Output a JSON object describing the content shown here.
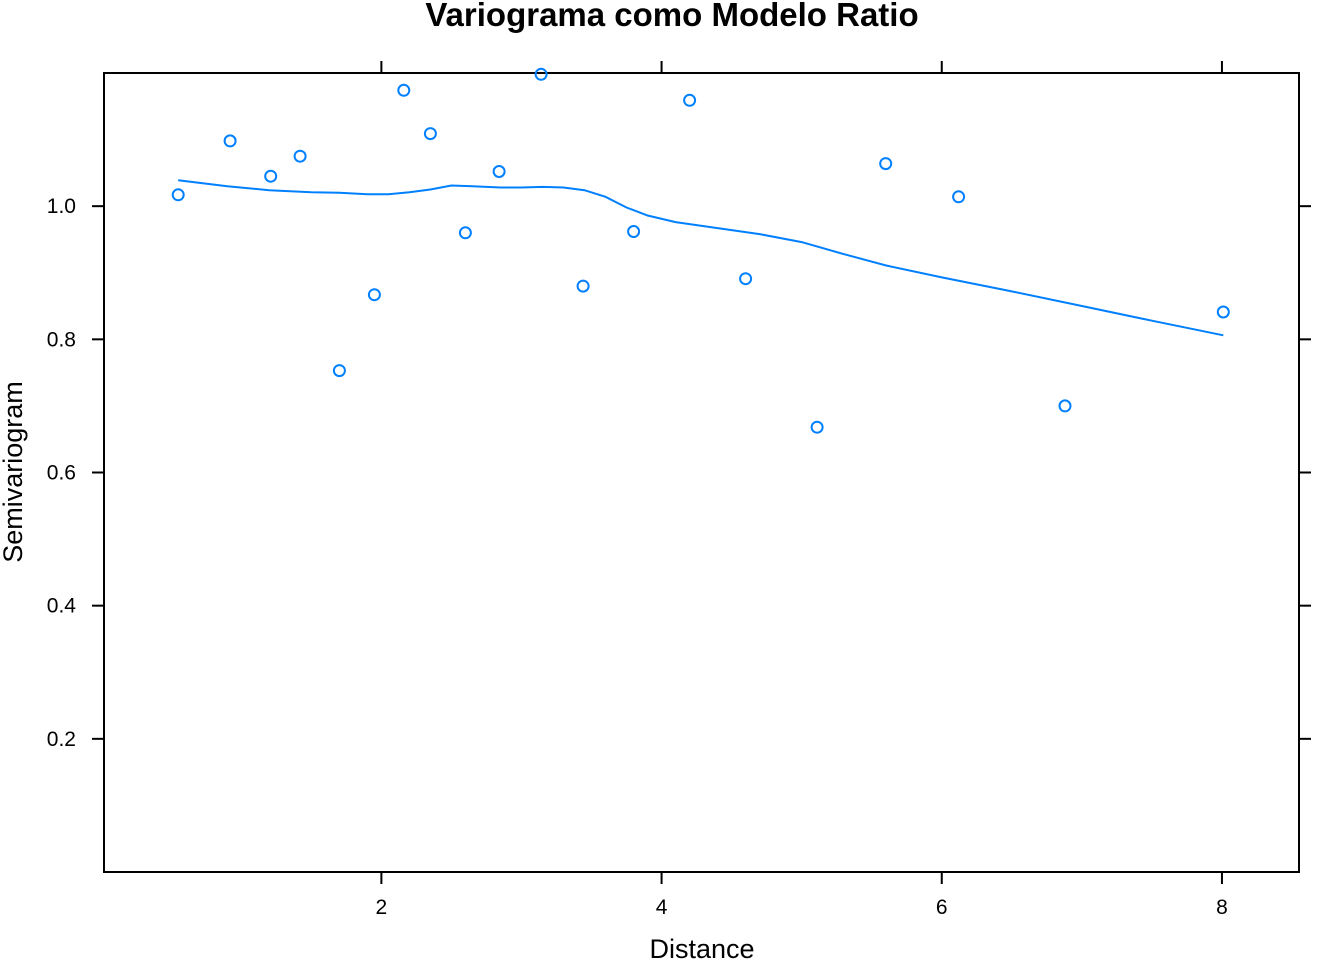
{
  "chart_data": {
    "type": "scatter",
    "title": "Variograma como Modelo Ratio",
    "xlabel": "Distance",
    "ylabel": "Semivariogram",
    "xlim": [
      0.02,
      8.55
    ],
    "ylim": [
      0.0,
      1.2
    ],
    "x_ticks": [
      {
        "value": 2,
        "label": "2"
      },
      {
        "value": 4,
        "label": "4"
      },
      {
        "value": 6,
        "label": "6"
      },
      {
        "value": 8,
        "label": "8"
      }
    ],
    "y_ticks": [
      {
        "value": 0.2,
        "label": "0.2"
      },
      {
        "value": 0.4,
        "label": "0.4"
      },
      {
        "value": 0.6,
        "label": "0.6"
      },
      {
        "value": 0.8,
        "label": "0.8"
      },
      {
        "value": 1.0,
        "label": "1.0"
      }
    ],
    "grid": false,
    "color": "#0080ff",
    "series": [
      {
        "type": "scatter",
        "x": [
          0.55,
          0.92,
          1.21,
          1.42,
          1.7,
          1.95,
          2.16,
          2.35,
          2.6,
          2.84,
          3.14,
          3.44,
          3.8,
          4.2,
          4.6,
          5.11,
          5.6,
          6.12,
          6.88,
          8.01
        ],
        "y": [
          1.017,
          1.098,
          1.045,
          1.075,
          0.753,
          0.867,
          1.174,
          1.109,
          0.96,
          1.052,
          1.198,
          0.88,
          0.962,
          1.159,
          0.891,
          0.668,
          1.064,
          1.014,
          0.7,
          0.841
        ]
      },
      {
        "type": "line",
        "x": [
          0.55,
          0.9,
          1.2,
          1.5,
          1.7,
          1.9,
          2.05,
          2.2,
          2.35,
          2.5,
          2.65,
          2.85,
          3.0,
          3.15,
          3.3,
          3.45,
          3.6,
          3.75,
          3.9,
          4.1,
          4.4,
          4.7,
          5.0,
          5.3,
          5.6,
          6.0,
          6.5,
          7.0,
          7.5,
          8.01
        ],
        "y": [
          1.039,
          1.03,
          1.024,
          1.021,
          1.02,
          1.018,
          1.018,
          1.021,
          1.025,
          1.031,
          1.03,
          1.028,
          1.028,
          1.029,
          1.028,
          1.024,
          1.014,
          0.998,
          0.986,
          0.976,
          0.967,
          0.958,
          0.946,
          0.928,
          0.911,
          0.893,
          0.872,
          0.85,
          0.828,
          0.806
        ]
      }
    ]
  }
}
